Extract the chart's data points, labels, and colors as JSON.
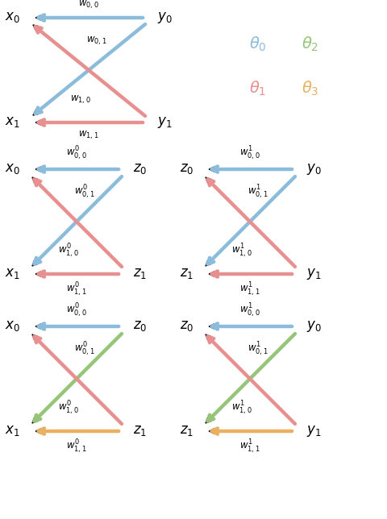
{
  "colors": {
    "blue": "#8BBCDB",
    "pink": "#E89090",
    "green": "#96C478",
    "orange": "#E8B060",
    "black": "#111111"
  },
  "legend": {
    "theta0": {
      "text": "$\\theta_0$",
      "color": "#8BBCDB"
    },
    "theta2": {
      "text": "$\\theta_2$",
      "color": "#96C478"
    },
    "theta1": {
      "text": "$\\theta_1$",
      "color": "#E89090"
    },
    "theta3": {
      "text": "$\\theta_3$",
      "color": "#E8B060"
    }
  },
  "figsize": [
    4.8,
    6.44
  ],
  "dpi": 100
}
